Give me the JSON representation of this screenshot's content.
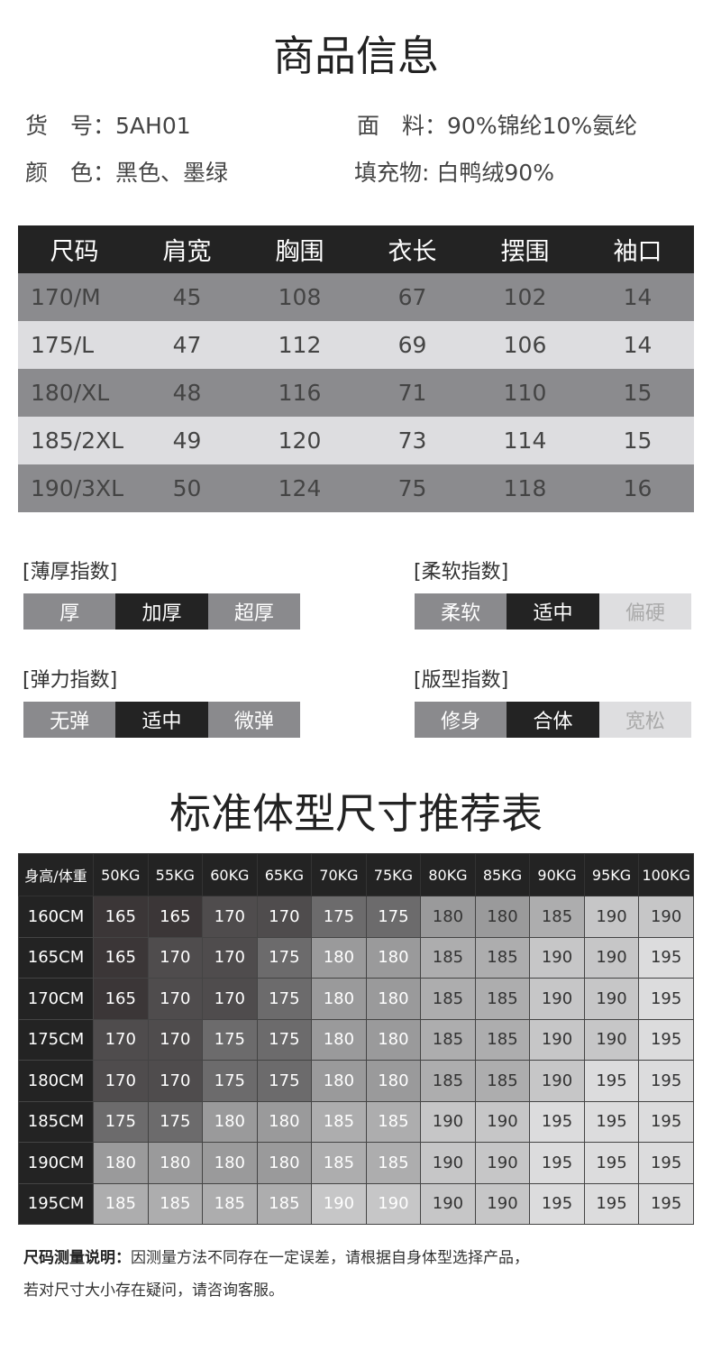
{
  "product_info": {
    "title": "商品信息",
    "item_no_label": "货　号：",
    "item_no": "5AH01",
    "fabric_label": "面　料：",
    "fabric": "90%锦纶10%氨纶",
    "color_label": "颜　色：",
    "color": "黑色、墨绿",
    "filling_label": "填充物:",
    "filling": "白鸭绒90%"
  },
  "size_table": {
    "headers": [
      "尺码",
      "肩宽",
      "胸围",
      "衣长",
      "摆围",
      "袖口"
    ],
    "rows": [
      [
        "170/M",
        "45",
        "108",
        "67",
        "102",
        "14"
      ],
      [
        "175/L",
        "47",
        "112",
        "69",
        "106",
        "14"
      ],
      [
        "180/XL",
        "48",
        "116",
        "71",
        "110",
        "15"
      ],
      [
        "185/2XL",
        "49",
        "120",
        "73",
        "114",
        "15"
      ],
      [
        "190/3XL",
        "50",
        "124",
        "75",
        "118",
        "16"
      ]
    ]
  },
  "indices": [
    {
      "label": "[薄厚指数]",
      "options": [
        "厚",
        "加厚",
        "超厚"
      ],
      "selected": 1,
      "style": "gray"
    },
    {
      "label": "[柔软指数]",
      "options": [
        "柔软",
        "适中",
        "偏硬"
      ],
      "selected": 1,
      "style": "fade"
    },
    {
      "label": "[弹力指数]",
      "options": [
        "无弹",
        "适中",
        "微弹"
      ],
      "selected": 1,
      "style": "gray"
    },
    {
      "label": "[版型指数]",
      "options": [
        "修身",
        "合体",
        "宽松"
      ],
      "selected": 1,
      "style": "fade"
    }
  ],
  "recommendation": {
    "title": "标准体型尺寸推荐表",
    "corner": "身高/体重",
    "weights": [
      "50KG",
      "55KG",
      "60KG",
      "65KG",
      "70KG",
      "75KG",
      "80KG",
      "85KG",
      "90KG",
      "95KG",
      "100KG"
    ],
    "rows": [
      {
        "height": "160CM",
        "values": [
          "165",
          "165",
          "170",
          "170",
          "175",
          "175",
          "180",
          "180",
          "185",
          "190",
          "190"
        ]
      },
      {
        "height": "165CM",
        "values": [
          "165",
          "170",
          "170",
          "175",
          "180",
          "180",
          "185",
          "185",
          "190",
          "190",
          "195"
        ]
      },
      {
        "height": "170CM",
        "values": [
          "165",
          "170",
          "170",
          "175",
          "180",
          "180",
          "185",
          "185",
          "190",
          "190",
          "195"
        ]
      },
      {
        "height": "175CM",
        "values": [
          "170",
          "170",
          "175",
          "175",
          "180",
          "180",
          "185",
          "185",
          "190",
          "190",
          "195"
        ]
      },
      {
        "height": "180CM",
        "values": [
          "170",
          "170",
          "175",
          "175",
          "180",
          "180",
          "185",
          "185",
          "190",
          "195",
          "195"
        ]
      },
      {
        "height": "185CM",
        "values": [
          "175",
          "175",
          "180",
          "180",
          "185",
          "185",
          "190",
          "190",
          "195",
          "195",
          "195"
        ]
      },
      {
        "height": "190CM",
        "values": [
          "180",
          "180",
          "180",
          "180",
          "185",
          "185",
          "190",
          "190",
          "195",
          "195",
          "195"
        ]
      },
      {
        "height": "195CM",
        "values": [
          "185",
          "185",
          "185",
          "185",
          "190",
          "190",
          "190",
          "190",
          "195",
          "195",
          "195"
        ]
      }
    ]
  },
  "note": {
    "label": "尺码测量说明：",
    "line1": "因测量方法不同存在一定误差，请根据自身体型选择产品，",
    "line2": "若对尺寸大小存在疑问，请咨询客服。"
  }
}
